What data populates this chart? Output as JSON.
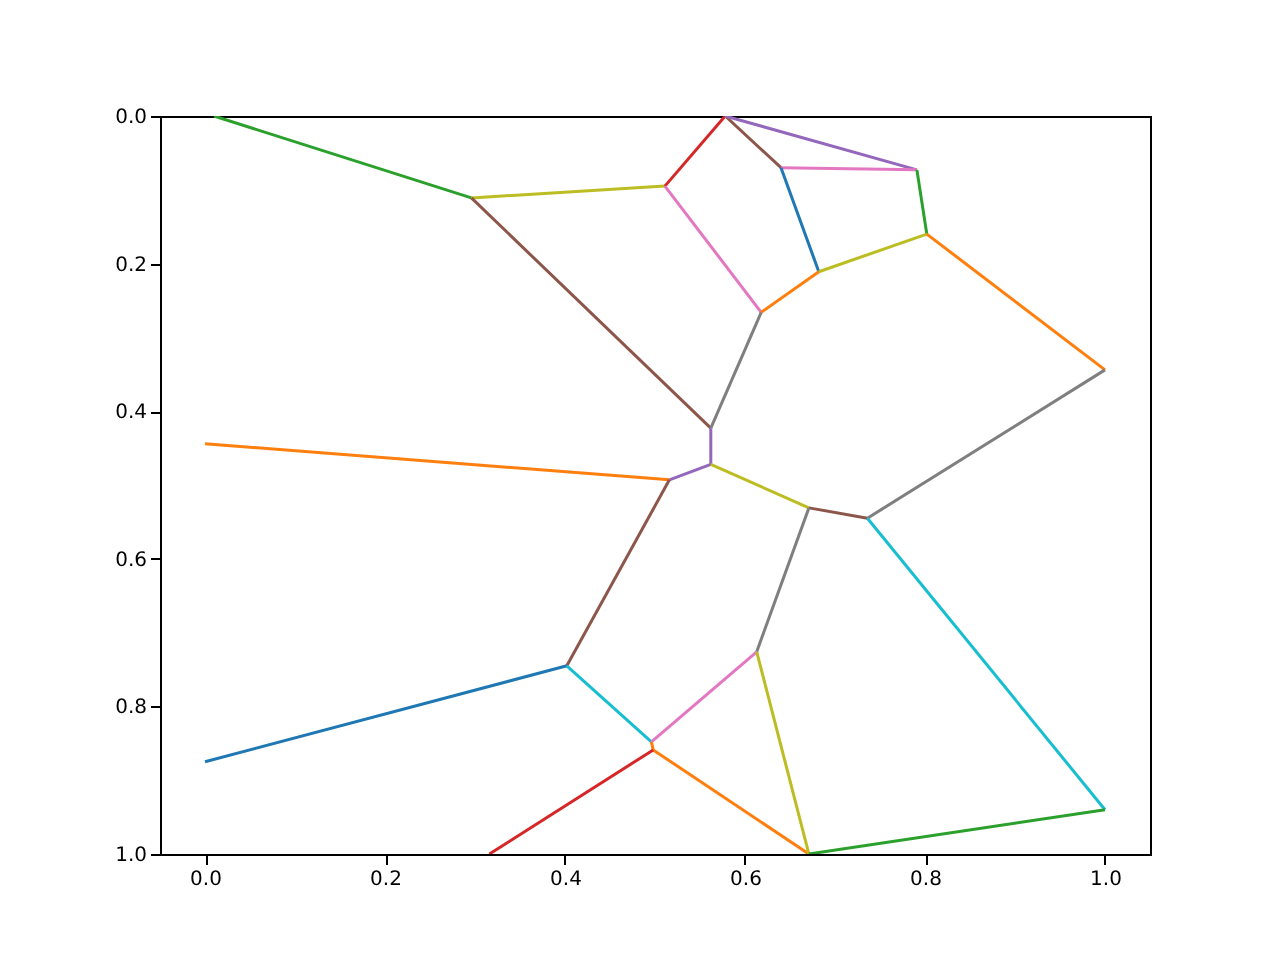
{
  "chart_data": {
    "type": "line",
    "xlim": [
      -0.05,
      1.05
    ],
    "ylim": [
      1.0,
      0.0
    ],
    "xticks": [
      {
        "value": 0,
        "label": "0.0"
      },
      {
        "value": 0.2,
        "label": "0.2"
      },
      {
        "value": 0.4,
        "label": "0.4"
      },
      {
        "value": 0.6,
        "label": "0.6"
      },
      {
        "value": 0.8,
        "label": "0.8"
      },
      {
        "value": 1,
        "label": "1.0"
      }
    ],
    "yticks": [
      {
        "value": 0,
        "label": "0.0"
      },
      {
        "value": 0.2,
        "label": "0.2"
      },
      {
        "value": 0.4,
        "label": "0.4"
      },
      {
        "value": 0.6,
        "label": "0.6"
      },
      {
        "value": 0.8,
        "label": "0.8"
      },
      {
        "value": 1,
        "label": "1.0"
      }
    ],
    "grid": false,
    "marker": "none",
    "line_style": "solid",
    "series": [
      {
        "color": "#2ca02c",
        "x": [
          0.01,
          0.296
        ],
        "values": [
          0.0,
          0.111
        ]
      },
      {
        "color": "#bcbd22",
        "x": [
          0.296,
          0.511
        ],
        "values": [
          0.111,
          0.095
        ]
      },
      {
        "color": "#8c564b",
        "x": [
          0.296,
          0.562
        ],
        "values": [
          0.111,
          0.423
        ]
      },
      {
        "color": "#d62728",
        "x": [
          0.511,
          0.578
        ],
        "values": [
          0.095,
          0.0
        ]
      },
      {
        "color": "#e377c2",
        "x": [
          0.511,
          0.618
        ],
        "values": [
          0.095,
          0.266
        ]
      },
      {
        "color": "#8c564b",
        "x": [
          0.578,
          0.64
        ],
        "values": [
          0.0,
          0.07
        ]
      },
      {
        "color": "#9467bd",
        "x": [
          0.578,
          0.791
        ],
        "values": [
          0.0,
          0.073
        ]
      },
      {
        "color": "#e377c2",
        "x": [
          0.64,
          0.791
        ],
        "values": [
          0.07,
          0.073
        ]
      },
      {
        "color": "#1f77b4",
        "x": [
          0.64,
          0.682
        ],
        "values": [
          0.07,
          0.211
        ]
      },
      {
        "color": "#2ca02c",
        "x": [
          0.791,
          0.802
        ],
        "values": [
          0.073,
          0.16
        ]
      },
      {
        "color": "#bcbd22",
        "x": [
          0.802,
          0.682
        ],
        "values": [
          0.16,
          0.211
        ]
      },
      {
        "color": "#ff7f0e",
        "x": [
          0.802,
          1.0
        ],
        "values": [
          0.16,
          0.344
        ]
      },
      {
        "color": "#ff7f0e",
        "x": [
          0.682,
          0.618
        ],
        "values": [
          0.211,
          0.266
        ]
      },
      {
        "color": "#7f7f7f",
        "x": [
          0.618,
          0.562
        ],
        "values": [
          0.266,
          0.423
        ]
      },
      {
        "color": "#9467bd",
        "x": [
          0.562,
          0.562,
          0.516
        ],
        "values": [
          0.423,
          0.472,
          0.493
        ]
      },
      {
        "color": "#ff7f0e",
        "x": [
          0.0,
          0.516
        ],
        "values": [
          0.444,
          0.493
        ]
      },
      {
        "color": "#bcbd22",
        "x": [
          0.562,
          0.671
        ],
        "values": [
          0.472,
          0.531
        ]
      },
      {
        "color": "#8c564b",
        "x": [
          0.671,
          0.736
        ],
        "values": [
          0.531,
          0.545
        ]
      },
      {
        "color": "#7f7f7f",
        "x": [
          0.736,
          1.0
        ],
        "values": [
          0.545,
          0.344
        ]
      },
      {
        "color": "#8c564b",
        "x": [
          0.516,
          0.402
        ],
        "values": [
          0.493,
          0.745
        ]
      },
      {
        "color": "#7f7f7f",
        "x": [
          0.671,
          0.613
        ],
        "values": [
          0.531,
          0.726
        ]
      },
      {
        "color": "#17becf",
        "x": [
          0.736,
          1.0
        ],
        "values": [
          0.545,
          0.94
        ]
      },
      {
        "color": "#1f77b4",
        "x": [
          0.402,
          0.0
        ],
        "values": [
          0.745,
          0.875
        ]
      },
      {
        "color": "#17becf",
        "x": [
          0.402,
          0.496
        ],
        "values": [
          0.745,
          0.848
        ]
      },
      {
        "color": "#e377c2",
        "x": [
          0.496,
          0.613
        ],
        "values": [
          0.848,
          0.726
        ]
      },
      {
        "color": "#ff7f0e",
        "x": [
          0.496,
          0.498,
          0.671
        ],
        "values": [
          0.848,
          0.859,
          1.0
        ]
      },
      {
        "color": "#d62728",
        "x": [
          0.316,
          0.498
        ],
        "values": [
          1.0,
          0.859
        ]
      },
      {
        "color": "#bcbd22",
        "x": [
          0.613,
          0.671
        ],
        "values": [
          0.726,
          1.0
        ]
      },
      {
        "color": "#2ca02c",
        "x": [
          0.671,
          1.0
        ],
        "values": [
          1.0,
          0.94
        ]
      }
    ]
  }
}
